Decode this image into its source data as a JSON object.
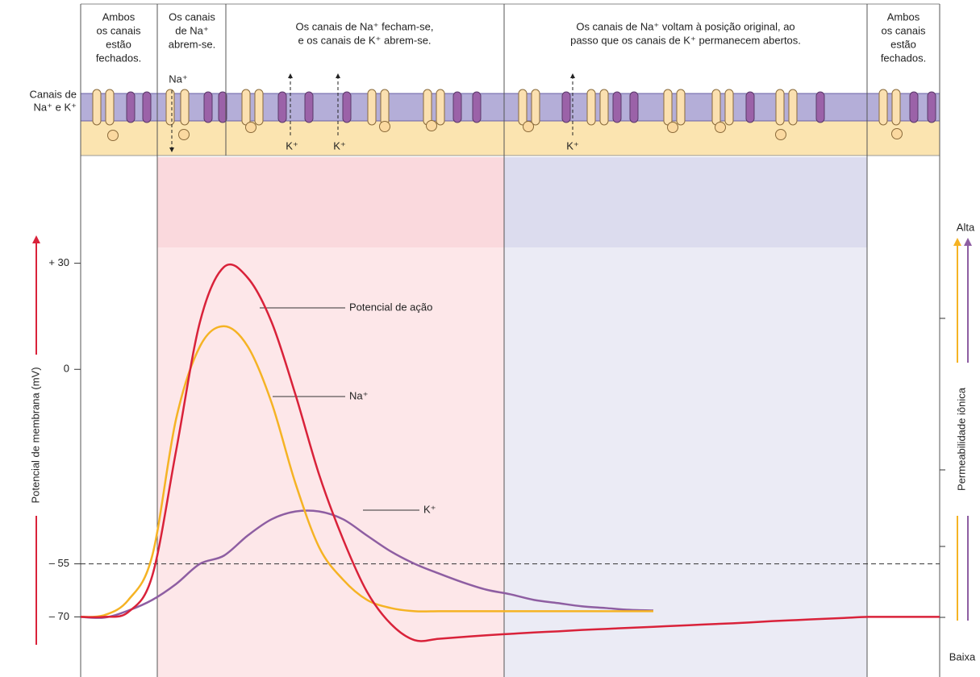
{
  "membrane": {
    "label": [
      "Canais de",
      "Na⁺ e K⁺"
    ],
    "phases": [
      [
        "Ambos",
        "os canais",
        "estão",
        "fechados."
      ],
      [
        "Os canais",
        "de Na⁺",
        "abrem-se."
      ],
      [
        "Os canais de Na⁺ fecham-se,",
        "e os canais de K⁺ abrem-se."
      ],
      [
        "Os canais de Na⁺ voltam à posição original, ao",
        "passo que os canais de K⁺ permanecem abertos."
      ],
      [
        "Ambos",
        "os canais",
        "estão",
        "fechados."
      ]
    ],
    "ions": [
      "Na⁺",
      "K⁺",
      "K⁺",
      "K⁺"
    ]
  },
  "chart_data": {
    "type": "line",
    "y_label": "Potencial de membrana (mV)",
    "y2_label": "Permeabilidade iônica",
    "y2_top_label": "Alta",
    "y2_bottom_label": "Baixa",
    "categories": [
      null,
      null,
      null,
      null,
      null,
      null,
      null,
      null,
      null,
      null,
      null,
      null,
      null,
      null,
      null,
      null,
      null,
      null,
      null,
      null,
      null,
      null,
      null,
      null,
      null,
      null,
      null,
      null,
      null,
      null,
      null,
      null,
      null,
      null,
      null,
      null,
      null
    ],
    "ylim": [
      -87,
      60
    ],
    "yticks": [
      {
        "value": 30,
        "label": "+ 30"
      },
      0,
      {
        "value": -55,
        "label": "– 55"
      },
      {
        "value": -70,
        "label": "– 70"
      }
    ],
    "reference_line": -55,
    "series": [
      {
        "name": "Potencial de ação",
        "color": "#d9223a",
        "values": [
          -70,
          -70,
          -68.6,
          -58.4,
          -23,
          13.4,
          28.9,
          25.9,
          13.4,
          -7.1,
          -29.9,
          -48.1,
          -62.9,
          -72,
          -76.6,
          -76.2,
          -75.7,
          -75.2,
          -74.8,
          -74.4,
          -74.1,
          -73.7,
          -73.4,
          -73.1,
          -72.8,
          -72.5,
          -72.2,
          -71.9,
          -71.6,
          -71.2,
          -70.9,
          -70.6,
          -70.3,
          -70,
          -70,
          -70,
          -70
        ]
      },
      {
        "name": "Na⁺",
        "color": "#f5b324",
        "values": [
          -70,
          -69.5,
          -65.2,
          -52.7,
          -14,
          6.5,
          12.2,
          6.5,
          -9.4,
          -32.2,
          -50.4,
          -59.5,
          -65.2,
          -67.5,
          -68.4,
          -68.4,
          -68.4,
          -68.4,
          -68.4,
          -68.4,
          -68.4,
          -68.4,
          -68.4,
          -68.4,
          -68.4,
          null,
          null,
          null,
          null,
          null,
          null,
          null,
          null,
          null,
          null,
          null,
          null
        ]
      },
      {
        "name": "K⁺",
        "color": "#8e5ea2",
        "values": [
          -70,
          -70.2,
          -68.2,
          -65.2,
          -60.7,
          -55,
          -52.7,
          -47,
          -42.4,
          -40.2,
          -40.2,
          -42.4,
          -47,
          -51.5,
          -55,
          -57.7,
          -60.2,
          -62.3,
          -63.6,
          -65.2,
          -66.1,
          -67,
          -67.5,
          -68,
          -68.2,
          null,
          null,
          null,
          null,
          null,
          null,
          null,
          null,
          null,
          null,
          null,
          null
        ]
      }
    ]
  }
}
